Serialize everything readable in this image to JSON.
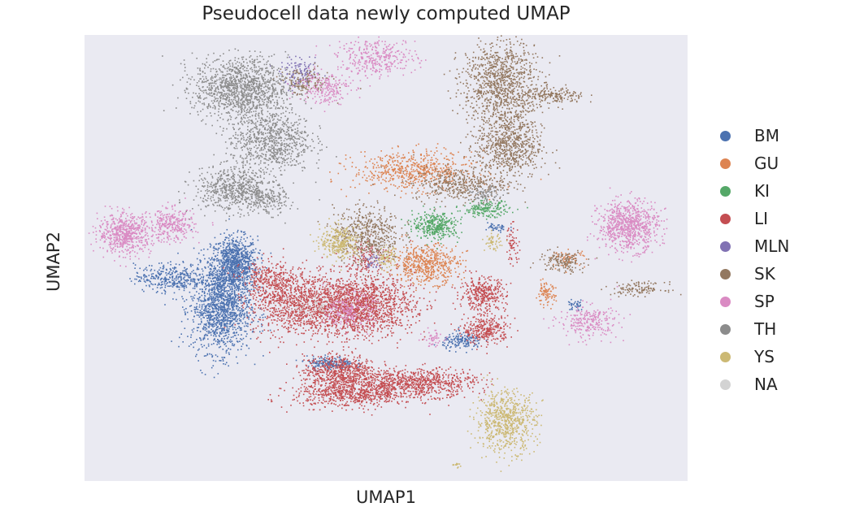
{
  "chart_data": {
    "type": "scatter",
    "title": "Pseudocell data newly computed UMAP",
    "xlabel": "UMAP1",
    "ylabel": "UMAP2",
    "x_ticks": "none",
    "y_ticks": "none",
    "grid": false,
    "legend_position": "right",
    "plot_background": "#eaeaf2",
    "series": [
      {
        "name": "BM",
        "color": "#4c72b0",
        "clusters": [
          {
            "x": -4.6,
            "y": 0.9,
            "sx": 0.35,
            "sy": 0.5,
            "n": 900
          },
          {
            "x": -5.0,
            "y": -0.7,
            "sx": 0.45,
            "sy": 0.8,
            "n": 1300
          },
          {
            "x": -6.5,
            "y": 0.4,
            "sx": 0.55,
            "sy": 0.25,
            "n": 350
          },
          {
            "x": -1.7,
            "y": -2.7,
            "sx": 0.35,
            "sy": 0.12,
            "n": 180
          },
          {
            "x": 2.3,
            "y": -1.9,
            "sx": 0.3,
            "sy": 0.15,
            "n": 160
          },
          {
            "x": 3.3,
            "y": 2.2,
            "sx": 0.2,
            "sy": 0.1,
            "n": 40
          },
          {
            "x": 5.7,
            "y": -0.6,
            "sx": 0.12,
            "sy": 0.1,
            "n": 40
          }
        ]
      },
      {
        "name": "GU",
        "color": "#dd8452",
        "clusters": [
          {
            "x": 0.8,
            "y": 4.3,
            "sx": 0.9,
            "sy": 0.35,
            "n": 600
          },
          {
            "x": 1.2,
            "y": 0.9,
            "sx": 0.5,
            "sy": 0.35,
            "n": 550
          },
          {
            "x": 4.8,
            "y": -0.2,
            "sx": 0.15,
            "sy": 0.2,
            "n": 90
          },
          {
            "x": 5.5,
            "y": 1.1,
            "sx": 0.25,
            "sy": 0.15,
            "n": 60
          }
        ]
      },
      {
        "name": "KI",
        "color": "#55a868",
        "clusters": [
          {
            "x": 1.5,
            "y": 2.3,
            "sx": 0.35,
            "sy": 0.25,
            "n": 350
          },
          {
            "x": 3.0,
            "y": 2.9,
            "sx": 0.35,
            "sy": 0.15,
            "n": 180
          }
        ]
      },
      {
        "name": "LI",
        "color": "#c44e52",
        "clusters": [
          {
            "x": -1.0,
            "y": -0.6,
            "sx": 0.9,
            "sy": 0.55,
            "n": 1800
          },
          {
            "x": -2.9,
            "y": -0.5,
            "sx": 0.6,
            "sy": 0.6,
            "n": 700
          },
          {
            "x": -1.4,
            "y": -3.0,
            "sx": 0.55,
            "sy": 0.3,
            "n": 600
          },
          {
            "x": -1.0,
            "y": -3.8,
            "sx": 0.9,
            "sy": 0.25,
            "n": 700
          },
          {
            "x": 1.0,
            "y": -3.4,
            "sx": 0.85,
            "sy": 0.25,
            "n": 700
          },
          {
            "x": 2.9,
            "y": -0.2,
            "sx": 0.35,
            "sy": 0.3,
            "n": 350
          },
          {
            "x": 3.0,
            "y": -1.5,
            "sx": 0.35,
            "sy": 0.25,
            "n": 300
          },
          {
            "x": -3.6,
            "y": 0.3,
            "sx": 0.4,
            "sy": 0.35,
            "n": 250
          },
          {
            "x": 3.8,
            "y": 1.6,
            "sx": 0.1,
            "sy": 0.35,
            "n": 60
          },
          {
            "x": -0.6,
            "y": 1.2,
            "sx": 0.3,
            "sy": 0.3,
            "n": 120
          }
        ]
      },
      {
        "name": "MLN",
        "color": "#8172b3",
        "clusters": [
          {
            "x": -2.6,
            "y": 7.8,
            "sx": 0.3,
            "sy": 0.25,
            "n": 120
          },
          {
            "x": -0.4,
            "y": 1.0,
            "sx": 0.15,
            "sy": 0.15,
            "n": 40
          }
        ]
      },
      {
        "name": "SK",
        "color": "#937860",
        "clusters": [
          {
            "x": 3.4,
            "y": 7.5,
            "sx": 0.55,
            "sy": 0.8,
            "n": 1000
          },
          {
            "x": 3.7,
            "y": 5.2,
            "sx": 0.5,
            "sy": 0.6,
            "n": 700
          },
          {
            "x": 2.2,
            "y": 3.8,
            "sx": 0.7,
            "sy": 0.3,
            "n": 400
          },
          {
            "x": -0.6,
            "y": 2.0,
            "sx": 0.5,
            "sy": 0.5,
            "n": 500
          },
          {
            "x": 5.0,
            "y": 7.0,
            "sx": 0.5,
            "sy": 0.15,
            "n": 200
          },
          {
            "x": 5.3,
            "y": 1.0,
            "sx": 0.35,
            "sy": 0.2,
            "n": 150
          },
          {
            "x": 7.6,
            "y": 0.0,
            "sx": 0.4,
            "sy": 0.12,
            "n": 120
          },
          {
            "x": -2.5,
            "y": 7.5,
            "sx": 0.4,
            "sy": 0.25,
            "n": 150
          }
        ]
      },
      {
        "name": "SP",
        "color": "#da8bc3",
        "clusters": [
          {
            "x": 7.3,
            "y": 2.3,
            "sx": 0.45,
            "sy": 0.45,
            "n": 800
          },
          {
            "x": -7.9,
            "y": 2.0,
            "sx": 0.4,
            "sy": 0.35,
            "n": 600
          },
          {
            "x": -6.5,
            "y": 2.3,
            "sx": 0.35,
            "sy": 0.3,
            "n": 300
          },
          {
            "x": -0.3,
            "y": 8.4,
            "sx": 0.6,
            "sy": 0.35,
            "n": 350
          },
          {
            "x": -1.9,
            "y": 7.3,
            "sx": 0.4,
            "sy": 0.3,
            "n": 200
          },
          {
            "x": -1.1,
            "y": -0.8,
            "sx": 0.35,
            "sy": 0.3,
            "n": 200
          },
          {
            "x": 6.1,
            "y": -1.2,
            "sx": 0.45,
            "sy": 0.3,
            "n": 250
          },
          {
            "x": 1.4,
            "y": -1.8,
            "sx": 0.15,
            "sy": 0.15,
            "n": 50
          }
        ]
      },
      {
        "name": "TH",
        "color": "#8c8c8c",
        "clusters": [
          {
            "x": -4.4,
            "y": 7.3,
            "sx": 0.7,
            "sy": 0.55,
            "n": 1200
          },
          {
            "x": -3.5,
            "y": 5.4,
            "sx": 0.6,
            "sy": 0.6,
            "n": 800
          },
          {
            "x": -4.6,
            "y": 3.6,
            "sx": 0.6,
            "sy": 0.4,
            "n": 600
          },
          {
            "x": -3.6,
            "y": 3.2,
            "sx": 0.3,
            "sy": 0.25,
            "n": 150
          },
          {
            "x": 3.0,
            "y": 3.4,
            "sx": 0.25,
            "sy": 0.15,
            "n": 80
          }
        ]
      },
      {
        "name": "YS",
        "color": "#ccb974",
        "clusters": [
          {
            "x": 3.6,
            "y": -4.8,
            "sx": 0.45,
            "sy": 0.55,
            "n": 700
          },
          {
            "x": -1.4,
            "y": 1.7,
            "sx": 0.3,
            "sy": 0.3,
            "n": 300
          },
          {
            "x": 0.0,
            "y": 1.1,
            "sx": 0.15,
            "sy": 0.2,
            "n": 80
          },
          {
            "x": 3.2,
            "y": 1.7,
            "sx": 0.12,
            "sy": 0.15,
            "n": 50
          },
          {
            "x": 2.1,
            "y": -6.4,
            "sx": 0.1,
            "sy": 0.05,
            "n": 12
          }
        ]
      },
      {
        "name": "NA",
        "color": "#d3d3d3",
        "clusters": [
          {
            "x": -2.2,
            "y": -0.7,
            "sx": 0.4,
            "sy": 0.2,
            "n": 60
          }
        ]
      }
    ],
    "xlim": [
      -9.1,
      9.1
    ],
    "ylim": [
      -7.0,
      9.2
    ]
  }
}
